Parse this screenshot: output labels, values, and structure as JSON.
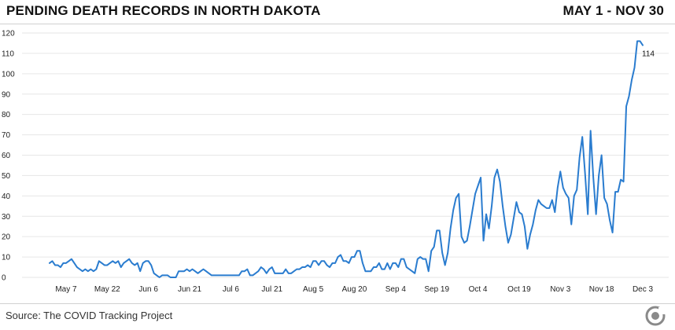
{
  "header": {
    "title": "PENDING DEATH RECORDS IN NORTH DAKOTA",
    "range": "MAY 1 - NOV 30"
  },
  "footer": {
    "source": "Source: The COVID Tracking Project"
  },
  "colors": {
    "line": "#2a7ccf",
    "grid": "#e6e6e6",
    "logo": "#8a8a8a"
  },
  "logo_icon": "covid-tracking-project-logo-icon",
  "chart_data": {
    "type": "line",
    "title": "PENDING DEATH RECORDS IN NORTH DAKOTA",
    "xlabel": "",
    "ylabel": "",
    "ylim": [
      0,
      120
    ],
    "yticks": [
      0,
      10,
      20,
      30,
      40,
      50,
      60,
      70,
      80,
      90,
      100,
      110,
      120
    ],
    "grid": true,
    "x_start": "May 1",
    "x_end": "Nov 30",
    "xticks": [
      {
        "label": "May 7",
        "index": 6
      },
      {
        "label": "May 22",
        "index": 21
      },
      {
        "label": "Jun 6",
        "index": 36
      },
      {
        "label": "Jun 21",
        "index": 51
      },
      {
        "label": "Jul 6",
        "index": 66
      },
      {
        "label": "Jul 21",
        "index": 81
      },
      {
        "label": "Aug 5",
        "index": 96
      },
      {
        "label": "Aug 20",
        "index": 111
      },
      {
        "label": "Sep 4",
        "index": 126
      },
      {
        "label": "Sep 19",
        "index": 141
      },
      {
        "label": "Oct 4",
        "index": 156
      },
      {
        "label": "Oct 19",
        "index": 171
      },
      {
        "label": "Nov 3",
        "index": 186
      },
      {
        "label": "Nov 18",
        "index": 201
      },
      {
        "label": "Dec 3",
        "index": 216
      }
    ],
    "end_label": "114",
    "values": [
      7,
      8,
      6,
      6,
      5,
      7,
      7,
      8,
      9,
      7,
      5,
      4,
      3,
      4,
      3,
      4,
      3,
      4,
      8,
      7,
      6,
      6,
      7,
      8,
      7,
      8,
      5,
      7,
      8,
      9,
      7,
      6,
      7,
      3,
      7,
      8,
      8,
      6,
      2,
      1,
      0,
      1,
      1,
      1,
      0,
      0,
      0,
      3,
      3,
      3,
      4,
      3,
      4,
      3,
      2,
      3,
      4,
      3,
      2,
      1,
      1,
      1,
      1,
      1,
      1,
      1,
      1,
      1,
      1,
      1,
      3,
      3,
      4,
      1,
      1,
      2,
      3,
      5,
      4,
      2,
      4,
      5,
      2,
      2,
      2,
      2,
      4,
      2,
      2,
      3,
      4,
      4,
      5,
      5,
      6,
      5,
      8,
      8,
      6,
      8,
      8,
      6,
      5,
      7,
      7,
      10,
      11,
      8,
      8,
      7,
      10,
      10,
      13,
      13,
      7,
      3,
      3,
      3,
      5,
      5,
      7,
      4,
      4,
      7,
      4,
      7,
      7,
      5,
      9,
      9,
      5,
      4,
      3,
      2,
      9,
      10,
      9,
      9,
      3,
      13,
      15,
      23,
      23,
      12,
      6,
      12,
      24,
      33,
      39,
      41,
      20,
      17,
      18,
      25,
      33,
      41,
      45,
      49,
      18,
      31,
      24,
      35,
      49,
      53,
      47,
      35,
      25,
      17,
      21,
      29,
      37,
      32,
      31,
      25,
      14,
      21,
      26,
      33,
      38,
      36,
      35,
      34,
      34,
      38,
      32,
      44,
      52,
      44,
      41,
      39,
      26,
      40,
      43,
      59,
      69,
      51,
      31,
      72,
      49,
      31,
      50,
      60,
      39,
      36,
      28,
      22,
      42,
      42,
      48,
      47,
      84,
      89,
      97,
      103,
      116,
      116,
      114
    ]
  }
}
